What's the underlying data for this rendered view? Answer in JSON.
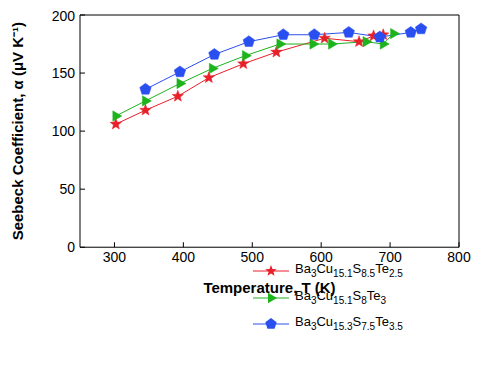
{
  "chart_data": {
    "type": "line",
    "x_label": "Temperature, T (K)",
    "y_label": "Seebeck Coefficient, α (μV K⁻¹)",
    "xlim": [
      250,
      800
    ],
    "xticks": [
      300,
      400,
      500,
      600,
      700,
      800
    ],
    "ylim": [
      0,
      200
    ],
    "yticks": [
      0,
      50,
      100,
      150,
      200
    ],
    "grid": false,
    "legend": "lower right",
    "series": [
      {
        "name": "Ba3Cu15.1S8.5Te2.5",
        "color": "#e8202a",
        "marker": "star",
        "x": [
          302,
          345,
          392,
          437,
          487,
          535,
          605,
          655,
          676,
          690
        ],
        "values": [
          106,
          118,
          130,
          146,
          158,
          168,
          180,
          177,
          182,
          183
        ]
      },
      {
        "name": "Ba3Cu15.1S8Te3",
        "color": "#1db31d",
        "marker": "triangle-right",
        "x": [
          302,
          345,
          395,
          442,
          490,
          540,
          588,
          615,
          665,
          690,
          705
        ],
        "values": [
          113,
          126,
          141,
          154,
          165,
          175,
          175,
          175,
          177,
          175,
          184
        ]
      },
      {
        "name": "Ba3Cu15.3S7.5Te3.5",
        "color": "#2a4ff0",
        "marker": "pentagon",
        "x": [
          345,
          395,
          445,
          495,
          545,
          590,
          640,
          685,
          730,
          745
        ],
        "values": [
          136,
          151,
          166,
          177,
          183,
          183,
          185,
          181,
          185,
          188
        ]
      }
    ]
  }
}
